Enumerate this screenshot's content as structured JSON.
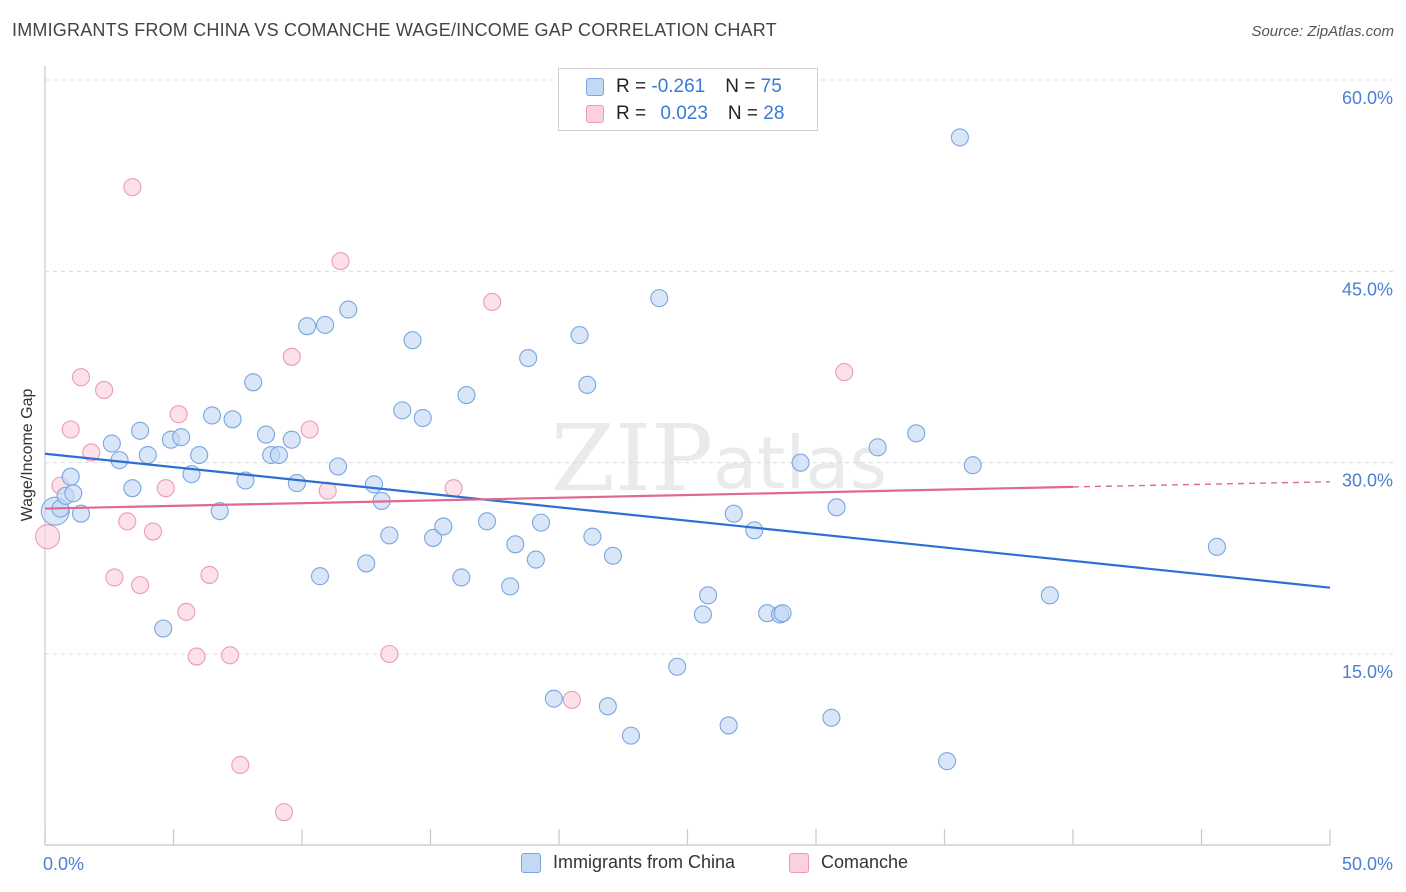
{
  "title": "IMMIGRANTS FROM CHINA VS COMANCHE WAGE/INCOME GAP CORRELATION CHART",
  "source": "Source: ZipAtlas.com",
  "watermark": {
    "zip": "ZIP",
    "atlas": "atlas"
  },
  "legend_top": {
    "rows": [
      {
        "r_label": "R = ",
        "r_value": "-0.261",
        "n_label": "N = ",
        "n_value": "75"
      },
      {
        "r_label": "R = ",
        "r_value": "0.023",
        "n_label": "N = ",
        "n_value": "28"
      }
    ]
  },
  "colors": {
    "china_fill": "#c3d8f5",
    "china_stroke": "#7aa6e0",
    "china_line": "#2d6fd2",
    "comanche_fill": "#fad1dd",
    "comanche_stroke": "#ec9bb4",
    "comanche_line": "#e0698f",
    "tick_text": "#4a7fd4",
    "grid": "#dcdcdc",
    "axis": "#c8c8c8",
    "watermark": "#d8d8d8"
  },
  "chart_data": {
    "type": "scatter",
    "title": "IMMIGRANTS FROM CHINA VS COMANCHE WAGE/INCOME GAP CORRELATION CHART",
    "xlabel": "",
    "ylabel": "Wage/Income Gap",
    "xlim": [
      0,
      50
    ],
    "ylim": [
      0,
      62
    ],
    "x_tick_labels": [
      "0.0%",
      "50.0%"
    ],
    "y_ticks": [
      15,
      30,
      45,
      60
    ],
    "y_tick_labels": [
      "15.0%",
      "30.0%",
      "45.0%",
      "60.0%"
    ],
    "grid": true,
    "legend_position": "bottom",
    "series": [
      {
        "name": "Immigrants from China",
        "r": -0.261,
        "n": 75,
        "trend": {
          "x0": 0,
          "y0": 30.7,
          "x1": 50,
          "y1": 20.2
        },
        "points": [
          [
            0.4,
            26.2
          ],
          [
            0.6,
            26.4
          ],
          [
            0.8,
            27.4
          ],
          [
            1.0,
            28.9
          ],
          [
            1.1,
            27.6
          ],
          [
            1.4,
            26.0
          ],
          [
            2.6,
            31.5
          ],
          [
            2.9,
            30.2
          ],
          [
            3.4,
            28.0
          ],
          [
            3.7,
            32.5
          ],
          [
            4.0,
            30.6
          ],
          [
            4.6,
            17.0
          ],
          [
            4.9,
            31.8
          ],
          [
            5.3,
            32.0
          ],
          [
            5.7,
            29.1
          ],
          [
            6.0,
            30.6
          ],
          [
            6.5,
            33.7
          ],
          [
            6.8,
            26.2
          ],
          [
            7.3,
            33.4
          ],
          [
            7.8,
            28.6
          ],
          [
            8.1,
            36.3
          ],
          [
            8.6,
            32.2
          ],
          [
            8.8,
            30.6
          ],
          [
            9.1,
            30.6
          ],
          [
            9.6,
            31.8
          ],
          [
            9.8,
            28.4
          ],
          [
            10.2,
            40.7
          ],
          [
            10.7,
            21.1
          ],
          [
            10.9,
            40.8
          ],
          [
            11.4,
            29.7
          ],
          [
            11.8,
            42.0
          ],
          [
            12.5,
            22.1
          ],
          [
            12.8,
            28.3
          ],
          [
            13.1,
            27.0
          ],
          [
            13.4,
            24.3
          ],
          [
            13.9,
            34.1
          ],
          [
            14.3,
            39.6
          ],
          [
            14.7,
            33.5
          ],
          [
            15.1,
            24.1
          ],
          [
            15.5,
            25.0
          ],
          [
            16.2,
            21.0
          ],
          [
            16.4,
            35.3
          ],
          [
            17.2,
            25.4
          ],
          [
            18.1,
            20.3
          ],
          [
            18.3,
            23.6
          ],
          [
            18.8,
            38.2
          ],
          [
            19.1,
            22.4
          ],
          [
            19.3,
            25.3
          ],
          [
            19.8,
            11.5
          ],
          [
            20.8,
            40.0
          ],
          [
            21.1,
            36.1
          ],
          [
            21.3,
            24.2
          ],
          [
            21.9,
            10.9
          ],
          [
            22.1,
            22.7
          ],
          [
            22.8,
            8.6
          ],
          [
            23.9,
            42.9
          ],
          [
            24.6,
            14.0
          ],
          [
            25.6,
            18.1
          ],
          [
            25.8,
            19.6
          ],
          [
            26.6,
            9.4
          ],
          [
            26.8,
            26.0
          ],
          [
            27.6,
            24.7
          ],
          [
            28.1,
            18.2
          ],
          [
            28.6,
            18.1
          ],
          [
            28.7,
            18.2
          ],
          [
            29.4,
            30.0
          ],
          [
            30.6,
            10.0
          ],
          [
            30.8,
            26.5
          ],
          [
            32.4,
            31.2
          ],
          [
            33.9,
            32.3
          ],
          [
            35.1,
            6.6
          ],
          [
            35.6,
            55.5
          ],
          [
            36.1,
            29.8
          ],
          [
            39.1,
            19.6
          ],
          [
            45.6,
            23.4
          ]
        ],
        "points_note": "first point is drawn large"
      },
      {
        "name": "Comanche",
        "r": 0.023,
        "n": 28,
        "trend": {
          "x0": 0,
          "y0": 26.4,
          "x1": 40,
          "y1": 28.1,
          "dashed_to_x": 50,
          "dashed_to_y": 28.5
        },
        "points": [
          [
            0.1,
            24.2
          ],
          [
            0.6,
            28.2
          ],
          [
            1.0,
            32.6
          ],
          [
            1.4,
            36.7
          ],
          [
            1.8,
            30.8
          ],
          [
            2.3,
            35.7
          ],
          [
            2.7,
            21.0
          ],
          [
            3.2,
            25.4
          ],
          [
            3.4,
            51.6
          ],
          [
            3.7,
            20.4
          ],
          [
            4.2,
            24.6
          ],
          [
            4.7,
            28.0
          ],
          [
            5.2,
            33.8
          ],
          [
            5.5,
            18.3
          ],
          [
            5.9,
            14.8
          ],
          [
            6.4,
            21.2
          ],
          [
            7.2,
            14.9
          ],
          [
            7.6,
            6.3
          ],
          [
            9.3,
            2.6
          ],
          [
            9.6,
            38.3
          ],
          [
            10.3,
            32.6
          ],
          [
            11.0,
            27.8
          ],
          [
            11.5,
            45.8
          ],
          [
            13.4,
            15.0
          ],
          [
            15.9,
            28.0
          ],
          [
            17.4,
            42.6
          ],
          [
            20.5,
            11.4
          ],
          [
            31.1,
            37.1
          ]
        ]
      }
    ]
  },
  "bottom_legend": [
    {
      "label": "Immigrants from China"
    },
    {
      "label": "Comanche"
    }
  ]
}
